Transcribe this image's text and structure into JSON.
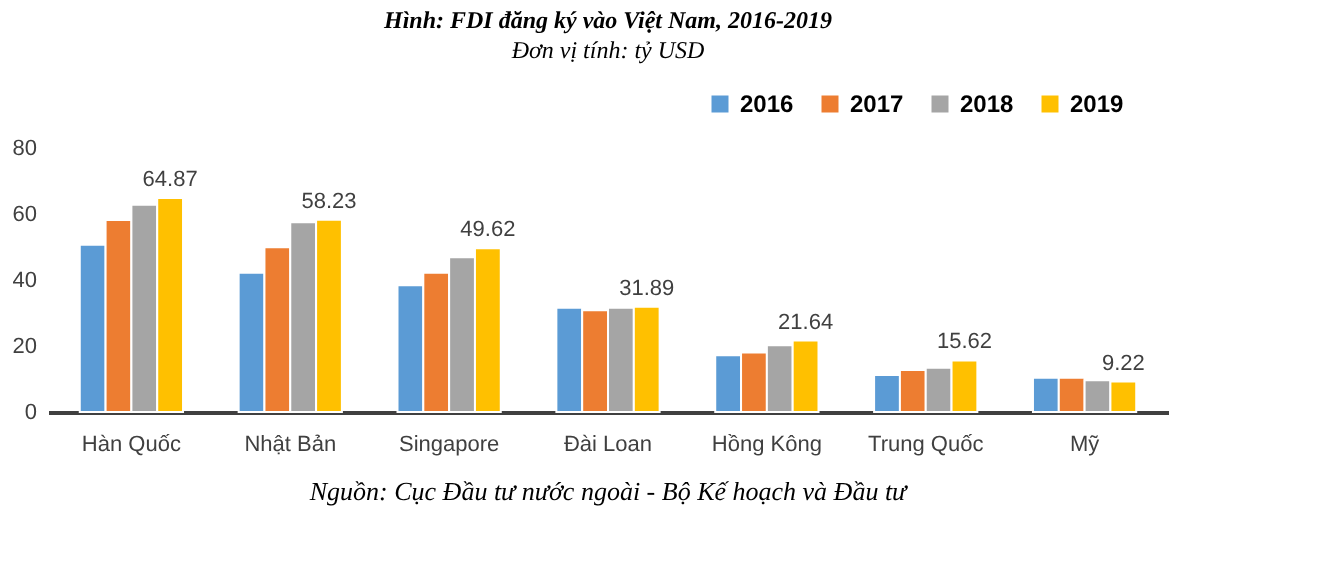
{
  "chart_data": {
    "type": "bar",
    "title": "Hình: FDI đăng ký vào Việt Nam, 2016-2019",
    "subtitle": "Đơn vị tính: tỷ USD",
    "categories": [
      "Hàn Quốc",
      "Nhật Bản",
      "Singapore",
      "Đài Loan",
      "Hồng Kông",
      "Trung Quốc",
      "Mỹ"
    ],
    "series": [
      {
        "name": "2016",
        "color": "#5b9bd5",
        "values": [
          50.7,
          42.2,
          38.4,
          31.6,
          17.2,
          11.2,
          10.4
        ]
      },
      {
        "name": "2017",
        "color": "#ed7d31",
        "values": [
          58.2,
          49.9,
          42.2,
          30.8,
          18.0,
          12.7,
          10.4
        ]
      },
      {
        "name": "2018",
        "color": "#a5a5a5",
        "values": [
          62.8,
          57.5,
          46.9,
          31.6,
          20.2,
          13.4,
          9.6
        ]
      },
      {
        "name": "2019",
        "color": "#ffc000",
        "values": [
          64.87,
          58.23,
          49.62,
          31.89,
          21.64,
          15.62,
          9.22
        ],
        "value_labels": [
          "64.87",
          "58.23",
          "49.62",
          "31.89",
          "21.64",
          "15.62",
          "9.22"
        ]
      }
    ],
    "ylim": [
      0,
      80
    ],
    "yticks": [
      0,
      20,
      40,
      60,
      80
    ],
    "grid": false,
    "legend": "top right",
    "annotations": [
      "Nguồn: Cục Đầu tư nước ngoài - Bộ Kế hoạch và Đầu tư"
    ]
  }
}
